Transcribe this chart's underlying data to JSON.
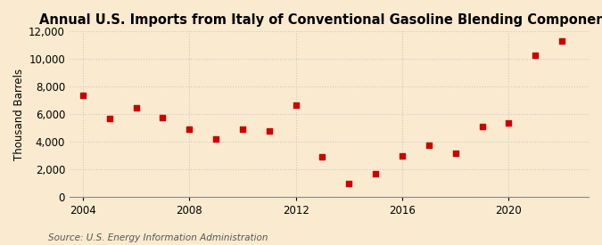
{
  "title": "Annual U.S. Imports from Italy of Conventional Gasoline Blending Components",
  "ylabel": "Thousand Barrels",
  "source": "Source: U.S. Energy Information Administration",
  "years": [
    2004,
    2005,
    2006,
    2007,
    2008,
    2009,
    2010,
    2011,
    2012,
    2013,
    2014,
    2015,
    2016,
    2017,
    2018,
    2019,
    2020,
    2021,
    2022
  ],
  "values": [
    7400,
    5700,
    6500,
    5800,
    4900,
    4200,
    4900,
    4800,
    6700,
    2900,
    1000,
    1700,
    3000,
    3800,
    3200,
    5100,
    5400,
    10300,
    11300
  ],
  "ylim": [
    0,
    12000
  ],
  "yticks": [
    0,
    2000,
    4000,
    6000,
    8000,
    10000,
    12000
  ],
  "xticks": [
    2004,
    2008,
    2012,
    2016,
    2020
  ],
  "xlim": [
    2003.5,
    2023.0
  ],
  "marker_color": "#cc0000",
  "marker": "s",
  "marker_size": 16,
  "bg_color": "#faebd0",
  "grid_color": "#c8c8c8",
  "title_fontsize": 10.5,
  "label_fontsize": 8.5,
  "source_fontsize": 7.5
}
